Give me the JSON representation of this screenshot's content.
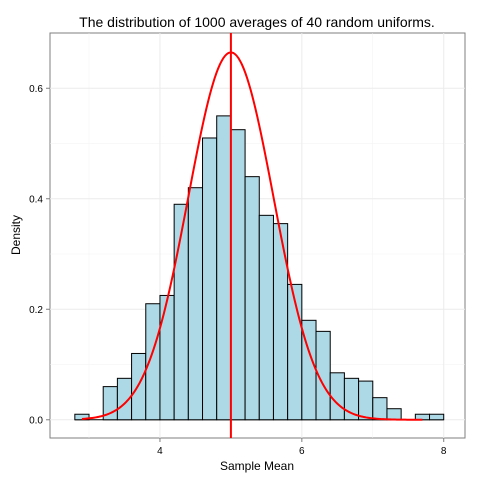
{
  "chart_data": {
    "type": "bar",
    "title": "The distribution of 1000 averages of 40 random uniforms.",
    "xlabel": "Sample Mean",
    "ylabel": "Density",
    "xlim": [
      2.45,
      8.3
    ],
    "ylim": [
      -0.033,
      0.7
    ],
    "x_ticks": [
      4,
      6,
      8
    ],
    "y_ticks": [
      0.0,
      0.2,
      0.4,
      0.6
    ],
    "x_tick_labels": [
      "4",
      "6",
      "8"
    ],
    "y_tick_labels": [
      "0.0",
      "0.2",
      "0.4",
      "0.6"
    ],
    "grid": true,
    "bin_width": 0.2,
    "histogram": {
      "fill": "#add8e6",
      "edge": "#000000",
      "bins": [
        {
          "x0": 2.8,
          "x1": 3.0,
          "density": 0.01
        },
        {
          "x0": 3.0,
          "x1": 3.2,
          "density": 0.0
        },
        {
          "x0": 3.2,
          "x1": 3.4,
          "density": 0.06
        },
        {
          "x0": 3.4,
          "x1": 3.6,
          "density": 0.075
        },
        {
          "x0": 3.6,
          "x1": 3.8,
          "density": 0.12
        },
        {
          "x0": 3.8,
          "x1": 4.0,
          "density": 0.21
        },
        {
          "x0": 4.0,
          "x1": 4.2,
          "density": 0.225
        },
        {
          "x0": 4.2,
          "x1": 4.4,
          "density": 0.39
        },
        {
          "x0": 4.4,
          "x1": 4.6,
          "density": 0.42
        },
        {
          "x0": 4.6,
          "x1": 4.8,
          "density": 0.51
        },
        {
          "x0": 4.8,
          "x1": 5.0,
          "density": 0.55
        },
        {
          "x0": 5.0,
          "x1": 5.2,
          "density": 0.525
        },
        {
          "x0": 5.2,
          "x1": 5.4,
          "density": 0.44
        },
        {
          "x0": 5.4,
          "x1": 5.6,
          "density": 0.37
        },
        {
          "x0": 5.6,
          "x1": 5.8,
          "density": 0.355
        },
        {
          "x0": 5.8,
          "x1": 6.0,
          "density": 0.245
        },
        {
          "x0": 6.0,
          "x1": 6.2,
          "density": 0.18
        },
        {
          "x0": 6.2,
          "x1": 6.4,
          "density": 0.16
        },
        {
          "x0": 6.4,
          "x1": 6.6,
          "density": 0.085
        },
        {
          "x0": 6.6,
          "x1": 6.8,
          "density": 0.075
        },
        {
          "x0": 6.8,
          "x1": 7.0,
          "density": 0.07
        },
        {
          "x0": 7.0,
          "x1": 7.2,
          "density": 0.04
        },
        {
          "x0": 7.2,
          "x1": 7.4,
          "density": 0.02
        },
        {
          "x0": 7.4,
          "x1": 7.6,
          "density": 0.0
        },
        {
          "x0": 7.6,
          "x1": 7.8,
          "density": 0.01
        },
        {
          "x0": 7.8,
          "x1": 8.0,
          "density": 0.01
        }
      ]
    },
    "density_curve": {
      "color": "#ff0000",
      "distribution": "normal",
      "mean": 5.0,
      "sd": 0.6,
      "x_range": [
        2.9,
        7.7
      ]
    },
    "vline": {
      "x": 5.0,
      "color": "#ff0000"
    }
  }
}
